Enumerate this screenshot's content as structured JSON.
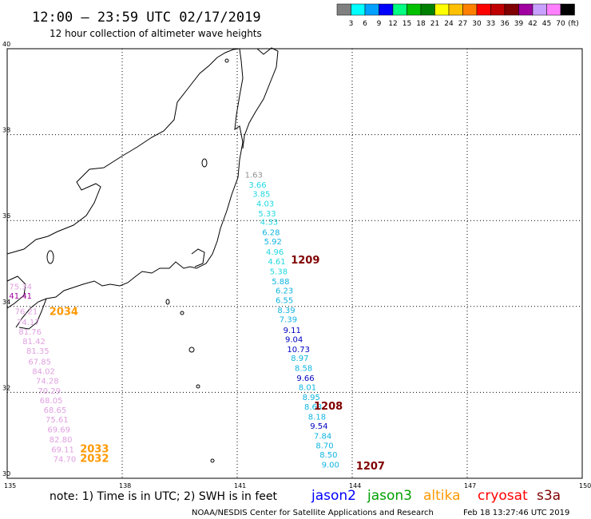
{
  "header": {
    "title": "12:00 – 23:59 UTC 02/17/2019",
    "subtitle": "12 hour collection of altimeter wave heights"
  },
  "legend": {
    "unit": "(ft)",
    "bins": [
      {
        "label": "3",
        "color": "#808080"
      },
      {
        "label": "6",
        "color": "#00ffff"
      },
      {
        "label": "9",
        "color": "#00a0ff"
      },
      {
        "label": "12",
        "color": "#0000ff"
      },
      {
        "label": "15",
        "color": "#00ff80"
      },
      {
        "label": "18",
        "color": "#00c000"
      },
      {
        "label": "21",
        "color": "#008000"
      },
      {
        "label": "24",
        "color": "#ffff00"
      },
      {
        "label": "27",
        "color": "#ffc000"
      },
      {
        "label": "30",
        "color": "#ff8000"
      },
      {
        "label": "33",
        "color": "#ff0000"
      },
      {
        "label": "36",
        "color": "#c00000"
      },
      {
        "label": "39",
        "color": "#800000"
      },
      {
        "label": "42",
        "color": "#a000a0"
      },
      {
        "label": "45",
        "color": "#c8a0ff"
      },
      {
        "label": "70",
        "color": "#ff80ff"
      },
      {
        "label": "",
        "color": "#000000"
      }
    ]
  },
  "axes": {
    "lon_range": [
      135,
      150
    ],
    "lat_range": [
      30,
      40
    ],
    "lon_ticks": [
      "135",
      "138",
      "141",
      "144",
      "147",
      "150"
    ],
    "lat_ticks": [
      "40",
      "38",
      "36",
      "34",
      "32",
      "30"
    ]
  },
  "tracks": [
    {
      "name": "s3a-east",
      "points": [
        {
          "lon": 141.2,
          "lat": 37.0,
          "value": "1.63",
          "color": "#909090"
        },
        {
          "lon": 141.3,
          "lat": 36.77,
          "value": "3.66",
          "color": "#20d8e0"
        },
        {
          "lon": 141.4,
          "lat": 36.55,
          "value": "3.85",
          "color": "#20d8e0"
        },
        {
          "lon": 141.5,
          "lat": 36.33,
          "value": "4.03",
          "color": "#20d8e0"
        },
        {
          "lon": 141.55,
          "lat": 36.1,
          "value": "5.33",
          "color": "#20d8e0"
        },
        {
          "lon": 141.6,
          "lat": 35.9,
          "value": "4.33",
          "color": "#20d8e0"
        },
        {
          "lon": 141.65,
          "lat": 35.66,
          "value": "6.28",
          "color": "#10b4e0"
        },
        {
          "lon": 141.7,
          "lat": 35.45,
          "value": "5.92",
          "color": "#10b4e0"
        },
        {
          "lon": 141.75,
          "lat": 35.2,
          "value": "4.96",
          "color": "#20d8e0"
        },
        {
          "lon": 141.8,
          "lat": 34.98,
          "value": "4.61",
          "color": "#20d8e0"
        },
        {
          "lon": 141.85,
          "lat": 34.75,
          "value": "5.38",
          "color": "#20d8e0"
        },
        {
          "lon": 141.9,
          "lat": 34.52,
          "value": "5.88",
          "color": "#10b4e0"
        },
        {
          "lon": 142.0,
          "lat": 34.3,
          "value": "6.23",
          "color": "#10b4e0"
        },
        {
          "lon": 142.0,
          "lat": 34.08,
          "value": "6.55",
          "color": "#10b4e0"
        },
        {
          "lon": 142.05,
          "lat": 33.85,
          "value": "8.39",
          "color": "#10b4e0"
        },
        {
          "lon": 142.1,
          "lat": 33.63,
          "value": "7.39",
          "color": "#10b4e0"
        },
        {
          "lon": 142.2,
          "lat": 33.38,
          "value": "9.11",
          "color": "#0000c0"
        },
        {
          "lon": 142.25,
          "lat": 33.17,
          "value": "9.04",
          "color": "#0000c0"
        },
        {
          "lon": 142.3,
          "lat": 32.94,
          "value": "10.73",
          "color": "#0000c0"
        },
        {
          "lon": 142.4,
          "lat": 32.73,
          "value": "8.97",
          "color": "#10b4e0"
        },
        {
          "lon": 142.5,
          "lat": 32.5,
          "value": "8.58",
          "color": "#10b4e0"
        },
        {
          "lon": 142.55,
          "lat": 32.27,
          "value": "9.66",
          "color": "#0000c0"
        },
        {
          "lon": 142.6,
          "lat": 32.05,
          "value": "8.01",
          "color": "#10b4e0"
        },
        {
          "lon": 142.7,
          "lat": 31.82,
          "value": "8.95",
          "color": "#10b4e0"
        },
        {
          "lon": 142.75,
          "lat": 31.6,
          "value": "8.63",
          "color": "#10b4e0"
        },
        {
          "lon": 142.85,
          "lat": 31.37,
          "value": "8.18",
          "color": "#10b4e0"
        },
        {
          "lon": 142.9,
          "lat": 31.15,
          "value": "9.54",
          "color": "#0000c0"
        },
        {
          "lon": 143.0,
          "lat": 30.92,
          "value": "7.84",
          "color": "#10b4e0"
        },
        {
          "lon": 143.05,
          "lat": 30.7,
          "value": "8.70",
          "color": "#10b4e0"
        },
        {
          "lon": 143.15,
          "lat": 30.48,
          "value": "8.50",
          "color": "#10b4e0"
        },
        {
          "lon": 143.2,
          "lat": 30.25,
          "value": "9.00",
          "color": "#10b4e0"
        }
      ]
    },
    {
      "name": "altika-west",
      "points": [
        {
          "lon": 135.05,
          "lat": 34.4,
          "value": "75.34",
          "color": "#e0a0e0"
        },
        {
          "lon": 135.05,
          "lat": 34.18,
          "value": "41.41",
          "color": "#a000a0"
        },
        {
          "lon": 135.2,
          "lat": 33.82,
          "value": "76.21",
          "color": "#e0a0e0"
        },
        {
          "lon": 135.25,
          "lat": 33.57,
          "value": "74.17",
          "color": "#e0a0e0"
        },
        {
          "lon": 135.3,
          "lat": 33.35,
          "value": "81.76",
          "color": "#e0a0e0"
        },
        {
          "lon": 135.4,
          "lat": 33.12,
          "value": "81.42",
          "color": "#e0a0e0"
        },
        {
          "lon": 135.5,
          "lat": 32.9,
          "value": "81.35",
          "color": "#e0a0e0"
        },
        {
          "lon": 135.55,
          "lat": 32.65,
          "value": "67.85",
          "color": "#e0a0e0"
        },
        {
          "lon": 135.65,
          "lat": 32.43,
          "value": "84.02",
          "color": "#e0a0e0"
        },
        {
          "lon": 135.75,
          "lat": 32.2,
          "value": "74.28",
          "color": "#e0a0e0"
        },
        {
          "lon": 135.8,
          "lat": 31.97,
          "value": "70.29",
          "color": "#e0a0e0"
        },
        {
          "lon": 135.85,
          "lat": 31.75,
          "value": "68.05",
          "color": "#e0a0e0"
        },
        {
          "lon": 135.95,
          "lat": 31.52,
          "value": "68.65",
          "color": "#e0a0e0"
        },
        {
          "lon": 136.0,
          "lat": 31.3,
          "value": "75.61",
          "color": "#e0a0e0"
        },
        {
          "lon": 136.05,
          "lat": 31.07,
          "value": "69.69",
          "color": "#e0a0e0"
        },
        {
          "lon": 136.1,
          "lat": 30.84,
          "value": "82.80",
          "color": "#e0a0e0"
        },
        {
          "lon": 136.15,
          "lat": 30.6,
          "value": "69.11",
          "color": "#e0a0e0"
        },
        {
          "lon": 136.2,
          "lat": 30.38,
          "value": "74.70",
          "color": "#e0a0e0"
        }
      ]
    }
  ],
  "time_labels": [
    {
      "lon": 142.4,
      "lat": 35.0,
      "text": "1209",
      "color": "#800000"
    },
    {
      "lon": 136.1,
      "lat": 33.8,
      "text": "2034",
      "color": "#ff9900"
    },
    {
      "lon": 143.0,
      "lat": 31.6,
      "text": "1208",
      "color": "#800000"
    },
    {
      "lon": 136.9,
      "lat": 30.6,
      "text": "2033",
      "color": "#ff9900"
    },
    {
      "lon": 136.9,
      "lat": 30.38,
      "text": "2032",
      "color": "#ff9900"
    },
    {
      "lon": 144.1,
      "lat": 30.2,
      "text": "1207",
      "color": "#800000"
    }
  ],
  "footer": {
    "note": "note:  1) Time is in UTC; 2) SWH is in feet",
    "satellites": [
      {
        "name": "jason2",
        "color": "#0000ff"
      },
      {
        "name": "jason3",
        "color": "#00a000"
      },
      {
        "name": "altika",
        "color": "#ff9900"
      },
      {
        "name": "cryosat",
        "color": "#ff0000"
      },
      {
        "name": "s3a",
        "color": "#800000"
      }
    ],
    "credit": "NOAA/NESDIS Center for Satellite Applications and Research",
    "timestamp": "Feb 18 13:27:46 UTC 2019"
  }
}
